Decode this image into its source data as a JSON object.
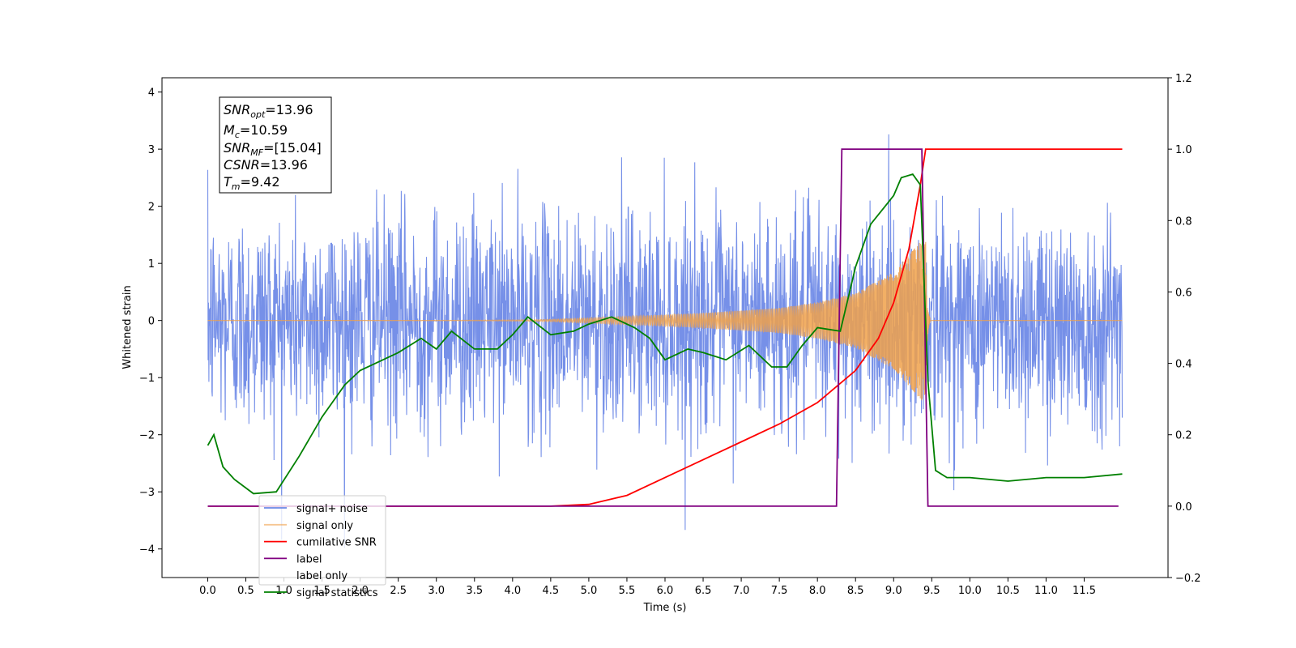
{
  "chart_data": {
    "type": "line",
    "xlabel": "Time (s)",
    "ylabel": "Whitened strain",
    "xlim": [
      -0.6,
      12.6
    ],
    "ylim": [
      -4.5,
      4.25
    ],
    "y2lim": [
      -0.2,
      1.2
    ],
    "x_ticks": [
      "0.0",
      "0.5",
      "1.0",
      "1.5",
      "2.0",
      "2.5",
      "3.0",
      "3.5",
      "4.0",
      "4.5",
      "5.0",
      "5.5",
      "6.0",
      "6.5",
      "7.0",
      "7.5",
      "8.0",
      "8.5",
      "9.0",
      "9.5",
      "10.0",
      "10.5",
      "11.0",
      "11.5"
    ],
    "y_ticks": [
      "4",
      "3",
      "2",
      "1",
      "0",
      "−1",
      "−2",
      "−3",
      "−4"
    ],
    "y2_ticks": [
      "1.2",
      "1.0",
      "0.8",
      "0.6",
      "0.4",
      "0.2",
      "0.0",
      "−0.2"
    ],
    "annotation": {
      "snr_opt": "=13.96",
      "mc": "=10.59",
      "snr_mf": "=[15.04]",
      "csnr": "=13.96",
      "tm": "=9.42"
    },
    "legend": {
      "location": "lower-left",
      "entries": [
        "signal+ noise",
        "signal only",
        "cumilative SNR",
        "label",
        "label only",
        "signal statistics"
      ]
    },
    "colors": {
      "noise": "#6a87e6",
      "signal": "#f0a14a",
      "cumsnr": "#ff0000",
      "label": "#800080",
      "stat": "#008000"
    },
    "series": [
      {
        "name": "signal+ noise",
        "axis": "left",
        "style": "dense noise",
        "x_range": [
          0,
          12
        ],
        "typical_amplitude": 1.0,
        "peak_range": [
          -4.1,
          3.88
        ]
      },
      {
        "name": "signal only",
        "axis": "left",
        "style": "chirp",
        "x_range": [
          0,
          12
        ],
        "chirp_end": 9.42,
        "amplitude_envelope": [
          {
            "x": 4.5,
            "y": 0.02
          },
          {
            "x": 5.5,
            "y": 0.07
          },
          {
            "x": 6.5,
            "y": 0.13
          },
          {
            "x": 7.5,
            "y": 0.22
          },
          {
            "x": 8.0,
            "y": 0.32
          },
          {
            "x": 8.5,
            "y": 0.48
          },
          {
            "x": 9.0,
            "y": 0.85
          },
          {
            "x": 9.3,
            "y": 1.3
          },
          {
            "x": 9.4,
            "y": 1.5
          }
        ]
      },
      {
        "name": "cumilative SNR",
        "axis": "right",
        "points": [
          {
            "x": 0.0,
            "y": 0.0
          },
          {
            "x": 4.5,
            "y": 0.0
          },
          {
            "x": 5.0,
            "y": 0.005
          },
          {
            "x": 5.5,
            "y": 0.03
          },
          {
            "x": 6.0,
            "y": 0.08
          },
          {
            "x": 6.5,
            "y": 0.13
          },
          {
            "x": 7.0,
            "y": 0.18
          },
          {
            "x": 7.5,
            "y": 0.23
          },
          {
            "x": 8.0,
            "y": 0.29
          },
          {
            "x": 8.5,
            "y": 0.38
          },
          {
            "x": 8.8,
            "y": 0.47
          },
          {
            "x": 9.0,
            "y": 0.57
          },
          {
            "x": 9.2,
            "y": 0.72
          },
          {
            "x": 9.35,
            "y": 0.9
          },
          {
            "x": 9.42,
            "y": 1.0
          },
          {
            "x": 12.0,
            "y": 1.0
          }
        ]
      },
      {
        "name": "label",
        "axis": "right",
        "points": [
          {
            "x": 0.0,
            "y": 0.0
          },
          {
            "x": 8.25,
            "y": 0.0
          },
          {
            "x": 8.32,
            "y": 1.0
          },
          {
            "x": 9.37,
            "y": 1.0
          },
          {
            "x": 9.45,
            "y": 0.0
          },
          {
            "x": 11.95,
            "y": 0.0
          }
        ]
      },
      {
        "name": "signal statistics",
        "axis": "right",
        "points": [
          {
            "x": 0.0,
            "y": 0.17
          },
          {
            "x": 0.08,
            "y": 0.2
          },
          {
            "x": 0.2,
            "y": 0.11
          },
          {
            "x": 0.35,
            "y": 0.075
          },
          {
            "x": 0.6,
            "y": 0.035
          },
          {
            "x": 0.9,
            "y": 0.04
          },
          {
            "x": 1.2,
            "y": 0.14
          },
          {
            "x": 1.5,
            "y": 0.25
          },
          {
            "x": 1.8,
            "y": 0.34
          },
          {
            "x": 2.0,
            "y": 0.38
          },
          {
            "x": 2.2,
            "y": 0.4
          },
          {
            "x": 2.5,
            "y": 0.43
          },
          {
            "x": 2.8,
            "y": 0.47
          },
          {
            "x": 3.0,
            "y": 0.44
          },
          {
            "x": 3.2,
            "y": 0.49
          },
          {
            "x": 3.5,
            "y": 0.44
          },
          {
            "x": 3.8,
            "y": 0.44
          },
          {
            "x": 4.0,
            "y": 0.48
          },
          {
            "x": 4.2,
            "y": 0.53
          },
          {
            "x": 4.5,
            "y": 0.48
          },
          {
            "x": 4.8,
            "y": 0.49
          },
          {
            "x": 5.0,
            "y": 0.51
          },
          {
            "x": 5.3,
            "y": 0.53
          },
          {
            "x": 5.6,
            "y": 0.5
          },
          {
            "x": 5.8,
            "y": 0.47
          },
          {
            "x": 6.0,
            "y": 0.41
          },
          {
            "x": 6.3,
            "y": 0.44
          },
          {
            "x": 6.5,
            "y": 0.43
          },
          {
            "x": 6.8,
            "y": 0.41
          },
          {
            "x": 7.1,
            "y": 0.45
          },
          {
            "x": 7.4,
            "y": 0.39
          },
          {
            "x": 7.6,
            "y": 0.39
          },
          {
            "x": 7.8,
            "y": 0.45
          },
          {
            "x": 8.0,
            "y": 0.5
          },
          {
            "x": 8.3,
            "y": 0.49
          },
          {
            "x": 8.5,
            "y": 0.67
          },
          {
            "x": 8.7,
            "y": 0.79
          },
          {
            "x": 8.85,
            "y": 0.83
          },
          {
            "x": 9.0,
            "y": 0.87
          },
          {
            "x": 9.1,
            "y": 0.92
          },
          {
            "x": 9.25,
            "y": 0.93
          },
          {
            "x": 9.35,
            "y": 0.9
          },
          {
            "x": 9.45,
            "y": 0.35
          },
          {
            "x": 9.55,
            "y": 0.1
          },
          {
            "x": 9.7,
            "y": 0.08
          },
          {
            "x": 10.0,
            "y": 0.08
          },
          {
            "x": 10.5,
            "y": 0.07
          },
          {
            "x": 11.0,
            "y": 0.08
          },
          {
            "x": 11.5,
            "y": 0.08
          },
          {
            "x": 12.0,
            "y": 0.09
          }
        ]
      }
    ]
  }
}
